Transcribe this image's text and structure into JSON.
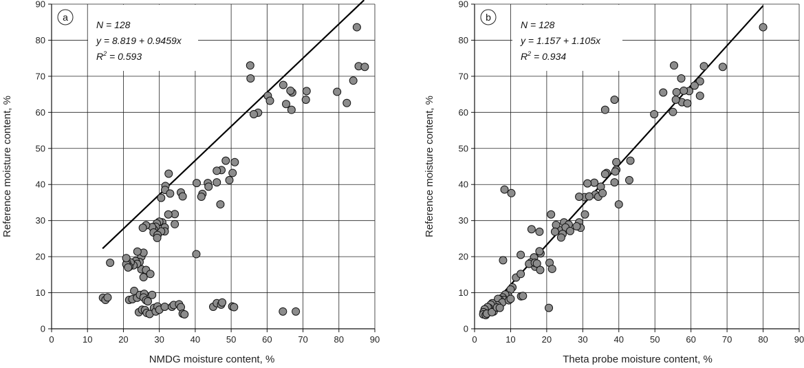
{
  "chart_data": [
    {
      "type": "scatter",
      "panel": "a",
      "xlabel": "NMDG moisture content, %",
      "ylabel": "Reference moisture content, %",
      "xlim": [
        0,
        90
      ],
      "ylim": [
        0,
        90
      ],
      "xticks": [
        0,
        10,
        20,
        30,
        40,
        50,
        60,
        70,
        80,
        90
      ],
      "yticks": [
        0,
        10,
        20,
        30,
        40,
        50,
        60,
        70,
        80,
        90
      ],
      "grid": true,
      "annotation": {
        "n": "N = 128",
        "eq": "y = 8.819 + 0.9459x",
        "r2_prefix": "R",
        "r2_exp": "2",
        "r2_value": " = 0.593"
      },
      "fit": {
        "slope": 0.9459,
        "intercept": 8.819,
        "x_range": [
          14.2,
          87
        ]
      },
      "marker_color": "#8c8c8c",
      "points": [
        [
          85,
          83.6
        ],
        [
          85.5,
          72.8
        ],
        [
          87.2,
          72.6
        ],
        [
          84,
          68.8
        ],
        [
          82.2,
          62.6
        ],
        [
          79.5,
          65.7
        ],
        [
          71,
          65.9
        ],
        [
          70.8,
          63.5
        ],
        [
          67,
          65.5
        ],
        [
          66.5,
          66
        ],
        [
          66.8,
          60.7
        ],
        [
          65.3,
          62.3
        ],
        [
          64.5,
          67.6
        ],
        [
          60.2,
          64.6
        ],
        [
          60.8,
          63.2
        ],
        [
          57.5,
          59.9
        ],
        [
          56.3,
          59.5
        ],
        [
          55.4,
          69.4
        ],
        [
          55.3,
          73
        ],
        [
          51,
          46.2
        ],
        [
          50.4,
          43.2
        ],
        [
          49.5,
          41.2
        ],
        [
          48.5,
          46.6
        ],
        [
          47.3,
          44
        ],
        [
          46,
          43.8
        ],
        [
          46,
          40.6
        ],
        [
          47,
          34.5
        ],
        [
          43.5,
          40.4
        ],
        [
          43.7,
          39.4
        ],
        [
          42,
          37.4
        ],
        [
          41.7,
          36.6
        ],
        [
          40.4,
          40.4
        ],
        [
          40.3,
          20.7
        ],
        [
          36,
          37.8
        ],
        [
          36.5,
          36.7
        ],
        [
          34.3,
          31.8
        ],
        [
          34.3,
          29
        ],
        [
          32.6,
          43
        ],
        [
          31.7,
          39.6
        ],
        [
          31.6,
          38.5
        ],
        [
          33,
          37.5
        ],
        [
          32.5,
          31.7
        ],
        [
          30.5,
          36.3
        ],
        [
          30.8,
          29.5
        ],
        [
          31.5,
          28.1
        ],
        [
          31.5,
          27
        ],
        [
          30.5,
          27
        ],
        [
          30,
          29.7
        ],
        [
          29.3,
          29.2
        ],
        [
          29,
          28.3
        ],
        [
          28.5,
          27.5
        ],
        [
          28,
          28.2
        ],
        [
          28.4,
          26.7
        ],
        [
          29.5,
          26
        ],
        [
          29.4,
          25.2
        ],
        [
          26.3,
          28.7
        ],
        [
          25.4,
          28
        ],
        [
          25,
          20
        ],
        [
          25.6,
          21.1
        ],
        [
          25,
          16.5
        ],
        [
          26.3,
          16.3
        ],
        [
          25.6,
          14.3
        ],
        [
          24.5,
          18.5
        ],
        [
          23.9,
          21.4
        ],
        [
          23.4,
          18.8
        ],
        [
          23.8,
          18
        ],
        [
          22.8,
          17.6
        ],
        [
          22,
          18.4
        ],
        [
          21,
          18.3
        ],
        [
          21.6,
          17.2
        ],
        [
          20.8,
          17.9
        ],
        [
          20.8,
          19.6
        ],
        [
          21.3,
          17
        ],
        [
          16.3,
          18.3
        ],
        [
          27.5,
          15.2
        ],
        [
          14.3,
          8.6
        ],
        [
          15,
          8
        ],
        [
          15.6,
          8.7
        ],
        [
          21.6,
          8
        ],
        [
          22.5,
          8.2
        ],
        [
          23,
          10.5
        ],
        [
          23.8,
          8.6
        ],
        [
          24.6,
          9.4
        ],
        [
          25.8,
          9.7
        ],
        [
          25.6,
          8.7
        ],
        [
          26.3,
          7.9
        ],
        [
          26.8,
          7.6
        ],
        [
          28,
          9.4
        ],
        [
          24.3,
          4.6
        ],
        [
          25.2,
          5.3
        ],
        [
          26,
          5.2
        ],
        [
          26.5,
          4.4
        ],
        [
          27.3,
          4.1
        ],
        [
          28.5,
          5.8
        ],
        [
          29,
          4.8
        ],
        [
          29.5,
          6.2
        ],
        [
          30,
          5.3
        ],
        [
          31.5,
          6.1
        ],
        [
          33.5,
          6.1
        ],
        [
          34,
          6.6
        ],
        [
          35.5,
          6.8
        ],
        [
          36,
          6
        ],
        [
          36.5,
          4.2
        ],
        [
          37,
          4
        ],
        [
          45,
          6.1
        ],
        [
          46,
          7.1
        ],
        [
          47.2,
          6.7
        ],
        [
          47.5,
          7.3
        ],
        [
          50.3,
          6.2
        ],
        [
          50.8,
          6
        ],
        [
          64.4,
          4.8
        ],
        [
          68,
          4.8
        ]
      ]
    },
    {
      "type": "scatter",
      "panel": "b",
      "xlabel": "Theta probe moisture content, %",
      "ylabel": "Reference moisture content, %",
      "xlim": [
        0,
        90
      ],
      "ylim": [
        0,
        90
      ],
      "xticks": [
        0,
        10,
        20,
        30,
        40,
        50,
        60,
        70,
        80,
        90
      ],
      "yticks": [
        0,
        10,
        20,
        30,
        40,
        50,
        60,
        70,
        80,
        90
      ],
      "grid": true,
      "annotation": {
        "n": "N = 128",
        "eq": "y = 1.157 + 1.105x",
        "r2_prefix": "R",
        "r2_exp": "2",
        "r2_value": " = 0.934"
      },
      "fit": {
        "slope": 1.105,
        "intercept": 1.157,
        "x_range": [
          2.3,
          80
        ]
      },
      "marker_color": "#8c8c8c",
      "points": [
        [
          80,
          83.6
        ],
        [
          68.8,
          72.6
        ],
        [
          63.6,
          72.8
        ],
        [
          57.3,
          69.4
        ],
        [
          55.3,
          73
        ],
        [
          62.5,
          68.6
        ],
        [
          62.5,
          64.6
        ],
        [
          61,
          67.4
        ],
        [
          59.5,
          65.9
        ],
        [
          58,
          66
        ],
        [
          57.5,
          62.8
        ],
        [
          56,
          65.6
        ],
        [
          55.8,
          63.5
        ],
        [
          55,
          60.1
        ],
        [
          52.3,
          65.5
        ],
        [
          59,
          62.5
        ],
        [
          49.8,
          59.5
        ],
        [
          38.8,
          63.5
        ],
        [
          36.2,
          60.7
        ],
        [
          43.2,
          46.6
        ],
        [
          39.3,
          46.2
        ],
        [
          39.3,
          44.1
        ],
        [
          39,
          43.6
        ],
        [
          36.6,
          43.2
        ],
        [
          36.2,
          42.9
        ],
        [
          42.9,
          41.2
        ],
        [
          38.8,
          40.6
        ],
        [
          33.2,
          40.5
        ],
        [
          31.3,
          40.3
        ],
        [
          35,
          39.4
        ],
        [
          33.5,
          37.2
        ],
        [
          34.3,
          36.6
        ],
        [
          35.5,
          37.6
        ],
        [
          30.5,
          36.5
        ],
        [
          31.8,
          36.7
        ],
        [
          29,
          36.6
        ],
        [
          40,
          34.5
        ],
        [
          30.6,
          31.7
        ],
        [
          29,
          29.5
        ],
        [
          29.4,
          28
        ],
        [
          28.3,
          28.4
        ],
        [
          24.8,
          29.5
        ],
        [
          26.1,
          28.9
        ],
        [
          25.2,
          28.1
        ],
        [
          23.3,
          27.5
        ],
        [
          22.6,
          28.8
        ],
        [
          22.3,
          26.9
        ],
        [
          24.4,
          26.3
        ],
        [
          26.5,
          27.1
        ],
        [
          24,
          25.3
        ],
        [
          21.2,
          31.7
        ],
        [
          15.8,
          27.6
        ],
        [
          18,
          26.9
        ],
        [
          8.3,
          38.6
        ],
        [
          10.2,
          37.6
        ],
        [
          18.3,
          20.9
        ],
        [
          18,
          21.5
        ],
        [
          16.5,
          19.8
        ],
        [
          16.8,
          17.2
        ],
        [
          15.6,
          18.4
        ],
        [
          15.1,
          18
        ],
        [
          16.7,
          18.3
        ],
        [
          17.3,
          18.1
        ],
        [
          18.2,
          16.3
        ],
        [
          20.8,
          18.3
        ],
        [
          21.5,
          16.6
        ],
        [
          12.8,
          20.5
        ],
        [
          11.5,
          14.2
        ],
        [
          7.9,
          19
        ],
        [
          12.8,
          15.2
        ],
        [
          10.5,
          11.5
        ],
        [
          10,
          10.9
        ],
        [
          9.3,
          9.2
        ],
        [
          8.5,
          9.5
        ],
        [
          7.8,
          8.7
        ],
        [
          8.2,
          8
        ],
        [
          6.9,
          8.2
        ],
        [
          6.5,
          8.3
        ],
        [
          7.7,
          7.3
        ],
        [
          6.3,
          6.5
        ],
        [
          5.8,
          5.9
        ],
        [
          4.9,
          7.1
        ],
        [
          4.5,
          6.7
        ],
        [
          4,
          5.8
        ],
        [
          3.6,
          6
        ],
        [
          2.8,
          5.4
        ],
        [
          2.5,
          4.6
        ],
        [
          2.4,
          4
        ],
        [
          3.1,
          3.8
        ],
        [
          3.4,
          4.2
        ],
        [
          5.3,
          4.8
        ],
        [
          4.8,
          4.6
        ],
        [
          6.2,
          5.9
        ],
        [
          7,
          5.8
        ],
        [
          9.5,
          7.9
        ],
        [
          10,
          8.3
        ],
        [
          12.9,
          9
        ],
        [
          20.6,
          5.8
        ],
        [
          13.4,
          9.1
        ]
      ]
    }
  ]
}
